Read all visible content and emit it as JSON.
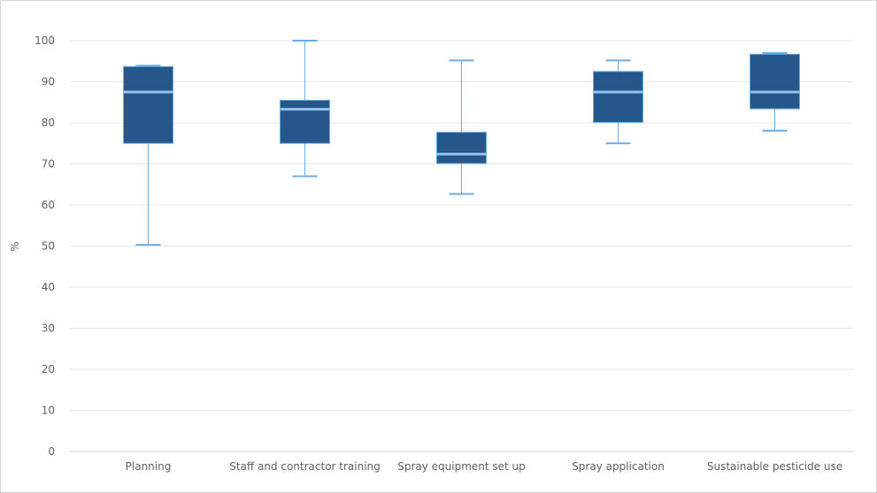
{
  "chart_data": {
    "type": "boxplot",
    "title": "",
    "xlabel": "",
    "ylabel": "%",
    "ylim": [
      0,
      100
    ],
    "yticks": [
      0,
      10,
      20,
      30,
      40,
      50,
      60,
      70,
      80,
      90,
      100
    ],
    "grid": true,
    "legend": "none",
    "categories": [
      "Planning",
      "Staff and contractor training",
      "Spray equipment set up",
      "Spray application",
      "Sustainable pesticide use"
    ],
    "boxes": [
      {
        "category": "Planning",
        "min": 50.3,
        "q1": 75.0,
        "median": 87.5,
        "q3": 93.7,
        "max": 93.9
      },
      {
        "category": "Staff and contractor training",
        "min": 67.0,
        "q1": 75.0,
        "median": 83.3,
        "q3": 85.5,
        "max": 100.0
      },
      {
        "category": "Spray equipment set up",
        "min": 62.7,
        "q1": 70.1,
        "median": 72.4,
        "q3": 77.7,
        "max": 95.2
      },
      {
        "category": "Spray application",
        "min": 75.0,
        "q1": 80.1,
        "median": 87.5,
        "q3": 92.5,
        "max": 95.2
      },
      {
        "category": "Sustainable pesticide use",
        "min": 78.1,
        "q1": 83.4,
        "median": 87.5,
        "q3": 96.7,
        "max": 97.0
      }
    ],
    "colors": {
      "box_fill": "#26578b",
      "box_stroke": "#6aaee6",
      "median": "#8fc3f0",
      "whisker": "#6aaee6",
      "grid": "#e6e6e6",
      "axis": "#c0d0e0"
    }
  }
}
